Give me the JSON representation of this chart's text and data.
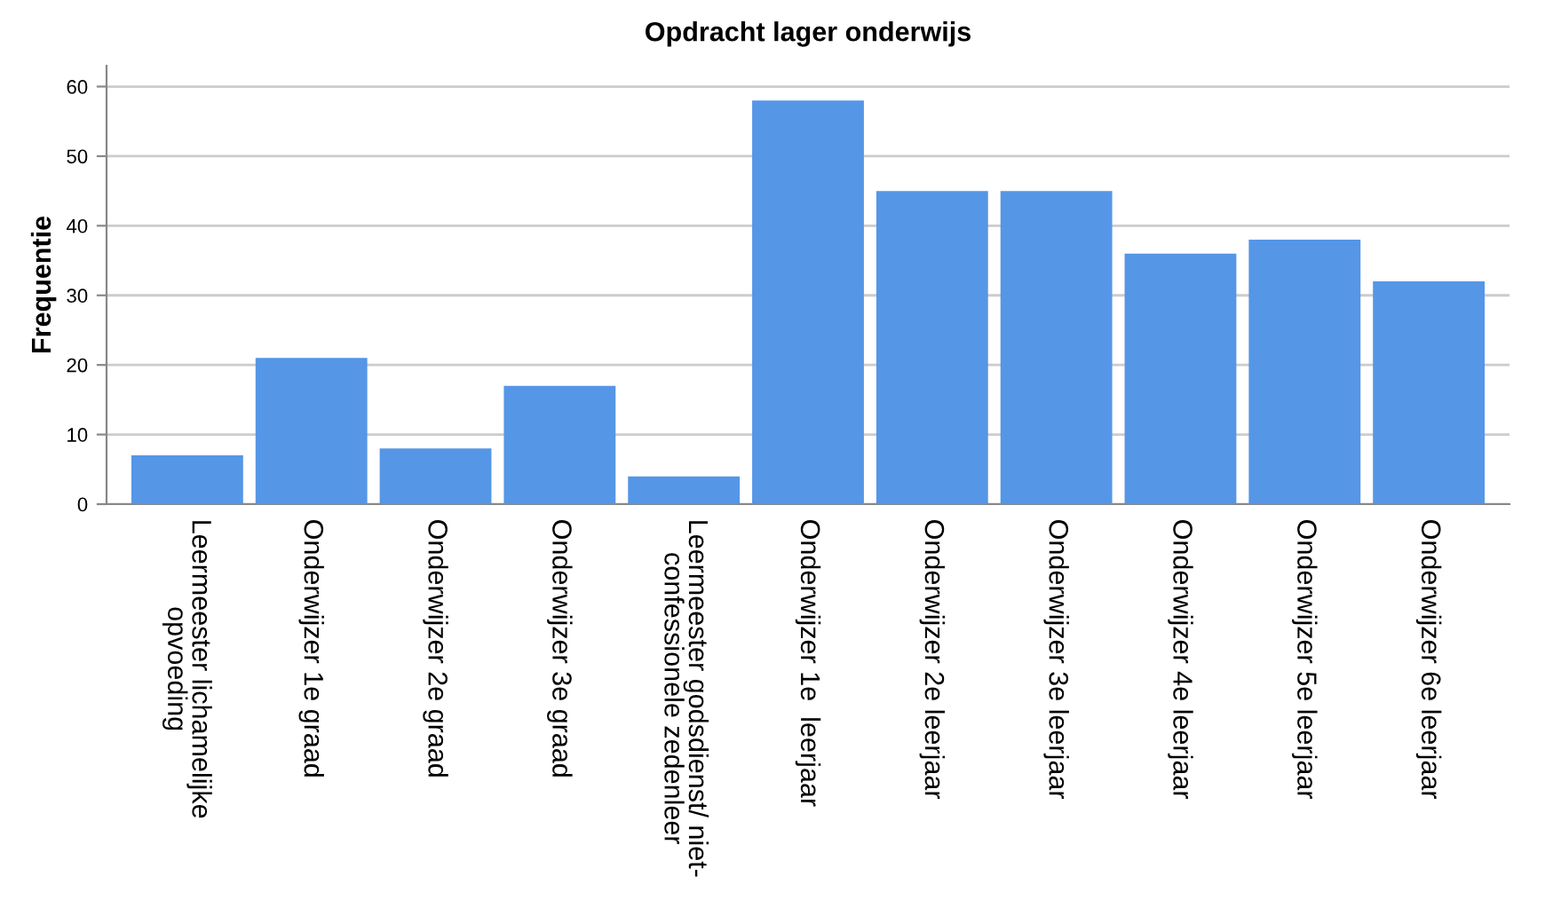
{
  "chart_data": {
    "type": "bar",
    "title": "Opdracht lager onderwijs",
    "ylabel": "Frequentie",
    "categories": [
      "Leermeester lichamelijke\nopvoeding",
      "Onderwijzer 1e graad",
      "Onderwijzer 2e graad",
      "Onderwijzer 3e graad",
      "Leermeester godsdienst/ niet-\nconfessionele zedenleer",
      "Onderwijzer 1e  leerjaar",
      "Onderwijzer 2e leerjaar",
      "Onderwijzer 3e leerjaar",
      "Onderwijzer 4e leerjaar",
      "Onderwijzer 5e leerjaar",
      "Onderwijzer 6e leerjaar"
    ],
    "values": [
      7,
      21,
      8,
      17,
      4,
      58,
      45,
      45,
      36,
      38,
      32
    ],
    "color": "#5596e6",
    "ylim": [
      0,
      63
    ],
    "yticks": [
      0,
      10,
      20,
      30,
      40,
      50,
      60
    ],
    "grid": "y"
  }
}
